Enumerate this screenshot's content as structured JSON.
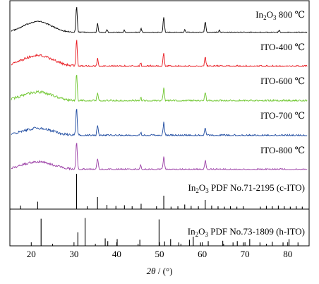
{
  "chart_data": {
    "type": "line",
    "xlabel_var": "2θ",
    "xlabel_unit": " / (°)",
    "xlim": [
      15,
      85
    ],
    "x_ticks": [
      20,
      30,
      40,
      50,
      60,
      70,
      80
    ],
    "grid": false,
    "legend": "none",
    "series": [
      {
        "key": "in2o3-800",
        "label_pre": "In",
        "label_sub": "2",
        "label_mid": "O",
        "label_sub2": "3",
        "label_post": " 800 ℃",
        "color": "#000000",
        "hump": {
          "center": 21.5,
          "width": 4.5,
          "height": 0.42
        },
        "noise": 0.05,
        "peaks": [
          {
            "x": 30.6,
            "h": 1.0
          },
          {
            "x": 35.5,
            "h": 0.35
          },
          {
            "x": 37.7,
            "h": 0.12
          },
          {
            "x": 41.8,
            "h": 0.08
          },
          {
            "x": 45.7,
            "h": 0.14
          },
          {
            "x": 51.0,
            "h": 0.6
          },
          {
            "x": 55.9,
            "h": 0.1
          },
          {
            "x": 60.7,
            "h": 0.4
          },
          {
            "x": 64.0,
            "h": 0.08
          },
          {
            "x": 78.0,
            "h": 0.07
          }
        ]
      },
      {
        "key": "ito-400",
        "label": "ITO-400 ℃",
        "color": "#e8141b",
        "hump": {
          "center": 21.5,
          "width": 5.0,
          "height": 0.4
        },
        "noise": 0.09,
        "peaks": [
          {
            "x": 30.6,
            "h": 0.95
          },
          {
            "x": 35.5,
            "h": 0.3
          },
          {
            "x": 45.6,
            "h": 0.12
          },
          {
            "x": 51.0,
            "h": 0.5
          },
          {
            "x": 60.7,
            "h": 0.35
          }
        ]
      },
      {
        "key": "ito-600",
        "label": "ITO-600 ℃",
        "color": "#6ec62e",
        "hump": {
          "center": 21.5,
          "width": 5.0,
          "height": 0.32
        },
        "noise": 0.1,
        "peaks": [
          {
            "x": 30.6,
            "h": 1.0
          },
          {
            "x": 35.5,
            "h": 0.3
          },
          {
            "x": 45.6,
            "h": 0.14
          },
          {
            "x": 51.0,
            "h": 0.48
          },
          {
            "x": 60.7,
            "h": 0.33
          }
        ]
      },
      {
        "key": "ito-700",
        "label": "ITO-700 ℃",
        "color": "#1d4aa0",
        "hump": {
          "center": 21.5,
          "width": 5.0,
          "height": 0.26
        },
        "noise": 0.09,
        "peaks": [
          {
            "x": 30.6,
            "h": 1.0
          },
          {
            "x": 35.5,
            "h": 0.38
          },
          {
            "x": 45.6,
            "h": 0.13
          },
          {
            "x": 51.0,
            "h": 0.48
          },
          {
            "x": 60.7,
            "h": 0.32
          }
        ]
      },
      {
        "key": "ito-800",
        "label": "ITO-800 ℃",
        "color": "#9b3fa6",
        "hump": {
          "center": 21.5,
          "width": 5.0,
          "height": 0.28
        },
        "noise": 0.08,
        "peaks": [
          {
            "x": 30.6,
            "h": 1.0
          },
          {
            "x": 35.5,
            "h": 0.42
          },
          {
            "x": 45.6,
            "h": 0.14
          },
          {
            "x": 51.0,
            "h": 0.45
          },
          {
            "x": 60.7,
            "h": 0.34
          }
        ]
      }
    ],
    "references": [
      {
        "key": "c-ito",
        "label_pre": "In",
        "label_sub": "2",
        "label_mid": "O",
        "label_sub2": "3",
        "label_post": " PDF No.71-2195 (c-ITO)",
        "sticks": [
          {
            "x": 17.5,
            "h": 0.1
          },
          {
            "x": 21.5,
            "h": 0.21
          },
          {
            "x": 30.6,
            "h": 1.0
          },
          {
            "x": 33.1,
            "h": 0.08
          },
          {
            "x": 35.5,
            "h": 0.34
          },
          {
            "x": 37.7,
            "h": 0.12
          },
          {
            "x": 39.8,
            "h": 0.09
          },
          {
            "x": 41.8,
            "h": 0.11
          },
          {
            "x": 43.6,
            "h": 0.08
          },
          {
            "x": 45.7,
            "h": 0.15
          },
          {
            "x": 49.3,
            "h": 0.08
          },
          {
            "x": 51.0,
            "h": 0.38
          },
          {
            "x": 52.7,
            "h": 0.07
          },
          {
            "x": 54.3,
            "h": 0.08
          },
          {
            "x": 55.9,
            "h": 0.13
          },
          {
            "x": 57.4,
            "h": 0.09
          },
          {
            "x": 59.1,
            "h": 0.08
          },
          {
            "x": 60.7,
            "h": 0.26
          },
          {
            "x": 62.2,
            "h": 0.1
          },
          {
            "x": 63.7,
            "h": 0.08
          },
          {
            "x": 65.2,
            "h": 0.07
          },
          {
            "x": 66.6,
            "h": 0.08
          },
          {
            "x": 68.1,
            "h": 0.07
          },
          {
            "x": 69.6,
            "h": 0.08
          },
          {
            "x": 73.6,
            "h": 0.07
          },
          {
            "x": 75.0,
            "h": 0.09
          },
          {
            "x": 76.4,
            "h": 0.08
          },
          {
            "x": 77.8,
            "h": 0.1
          },
          {
            "x": 79.2,
            "h": 0.08
          },
          {
            "x": 80.6,
            "h": 0.07
          },
          {
            "x": 82.0,
            "h": 0.08
          },
          {
            "x": 83.4,
            "h": 0.07
          }
        ]
      },
      {
        "key": "h-ito",
        "label_pre": "In",
        "label_sub": "2",
        "label_mid": "O",
        "label_sub2": "3",
        "label_post": " PDF No.73-1809 (h-ITO)",
        "sticks": [
          {
            "x": 22.3,
            "h": 0.8
          },
          {
            "x": 30.9,
            "h": 0.4
          },
          {
            "x": 32.6,
            "h": 0.82
          },
          {
            "x": 37.3,
            "h": 0.22
          },
          {
            "x": 37.9,
            "h": 0.14
          },
          {
            "x": 40.1,
            "h": 0.2
          },
          {
            "x": 45.4,
            "h": 0.18
          },
          {
            "x": 49.9,
            "h": 0.78
          },
          {
            "x": 51.2,
            "h": 0.13
          },
          {
            "x": 52.6,
            "h": 0.2
          },
          {
            "x": 54.5,
            "h": 0.1
          },
          {
            "x": 57.0,
            "h": 0.18
          },
          {
            "x": 57.9,
            "h": 0.27
          },
          {
            "x": 59.6,
            "h": 0.1
          },
          {
            "x": 61.4,
            "h": 0.14
          },
          {
            "x": 64.8,
            "h": 0.15
          },
          {
            "x": 67.2,
            "h": 0.1
          },
          {
            "x": 68.2,
            "h": 0.14
          },
          {
            "x": 69.6,
            "h": 0.1
          },
          {
            "x": 71.1,
            "h": 0.2
          },
          {
            "x": 73.5,
            "h": 0.1
          },
          {
            "x": 76.4,
            "h": 0.12
          },
          {
            "x": 78.9,
            "h": 0.1
          },
          {
            "x": 80.3,
            "h": 0.2
          },
          {
            "x": 82.4,
            "h": 0.1
          }
        ]
      }
    ]
  }
}
